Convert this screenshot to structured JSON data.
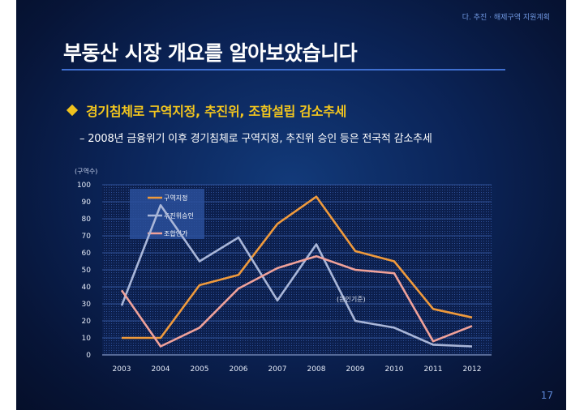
{
  "header": {
    "breadcrumb": "다. 추진 · 해제구역 지원계획",
    "title": "부동산 시장 개요를 알아보았습니다"
  },
  "bullet": {
    "text": "경기침체로 구역지정, 추진위, 조합설립 감소추세"
  },
  "subbullet": {
    "text": "– 2008년 금융위기 이후 경기침체로 구역지정, 추진위 승인 등은 전국적 감소추세"
  },
  "page_number": "17",
  "colors": {
    "background": "#0b2458",
    "title_rule": "#3f6fd0",
    "bullet_accent": "#f3c61e"
  },
  "chart_data": {
    "type": "line",
    "ylabel": "(구역수)",
    "ylim": [
      0,
      100
    ],
    "yticks": [
      0,
      10,
      20,
      30,
      40,
      50,
      60,
      70,
      80,
      90,
      100
    ],
    "categories": [
      "2003",
      "2004",
      "2005",
      "2006",
      "2007",
      "2008",
      "2009",
      "2010",
      "2011",
      "2012"
    ],
    "series": [
      {
        "name": "구역지정",
        "color": "#ef9a3c",
        "values": [
          10,
          10,
          41,
          47,
          77,
          93,
          61,
          55,
          27,
          22
        ]
      },
      {
        "name": "추진위승인",
        "color": "#a9b6d8",
        "values": [
          29,
          88,
          55,
          69,
          32,
          65,
          20,
          16,
          6,
          5
        ]
      },
      {
        "name": "조합인가",
        "color": "#f0a29a",
        "values": [
          38,
          5,
          16,
          39,
          51,
          58,
          50,
          48,
          8,
          17
        ]
      }
    ],
    "annotation": "(원인기준)",
    "legend_position": "top-left",
    "grid": true
  }
}
